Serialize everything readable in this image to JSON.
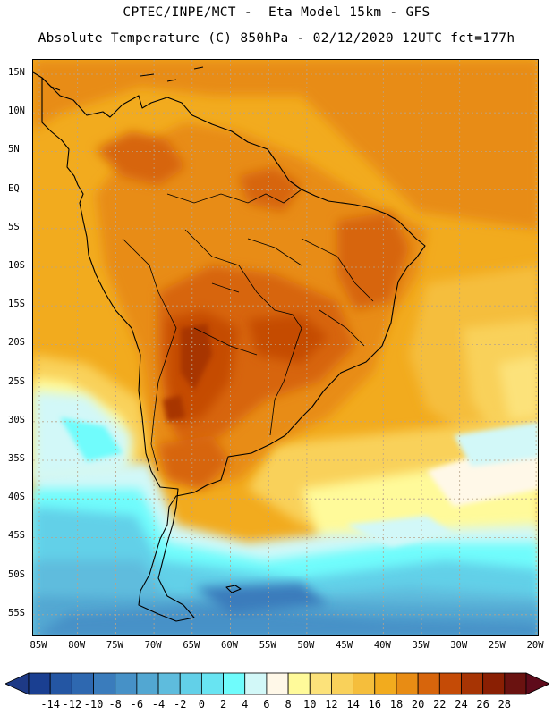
{
  "header": {
    "line1": "CPTEC/INPE/MCT -  Eta Model 15km - GFS",
    "line2": "Absolute Temperature (C) 850hPa - 02/12/2020 12UTC fct=177h"
  },
  "map": {
    "lat_labels": [
      "15N",
      "10N",
      "5N",
      "EQ",
      "5S",
      "10S",
      "15S",
      "20S",
      "25S",
      "30S",
      "35S",
      "40S",
      "45S",
      "50S",
      "55S"
    ],
    "lon_labels": [
      "85W",
      "80W",
      "75W",
      "70W",
      "65W",
      "60W",
      "55W",
      "50W",
      "45W",
      "40W",
      "35W",
      "30W",
      "25W",
      "20W"
    ],
    "region": "South America",
    "layers": [
      "coastlines",
      "country borders",
      "state borders",
      "lat-lon grid"
    ]
  },
  "colorbar": {
    "labels": [
      "-14",
      "-12",
      "-10",
      "-8",
      "-6",
      "-4",
      "-2",
      "0",
      "2",
      "4",
      "6",
      "8",
      "10",
      "12",
      "14",
      "16",
      "18",
      "20",
      "22",
      "24",
      "26",
      "28"
    ],
    "colors": [
      "#1a3f91",
      "#2456a3",
      "#2e68b0",
      "#3a7cbc",
      "#4691c7",
      "#52a7d2",
      "#5ebcdd",
      "#62d0e8",
      "#68e4f2",
      "#6ffcfc",
      "#d2f8f8",
      "#fff8e8",
      "#fffa9a",
      "#fce27a",
      "#f9d15a",
      "#f5be3c",
      "#f2ab1e",
      "#e88c14",
      "#d7650c",
      "#c54b06",
      "#a73404",
      "#8a1f03",
      "#6a1210"
    ],
    "end_colors": {
      "low": "#1e3a86",
      "high": "#5e0b1b"
    }
  }
}
